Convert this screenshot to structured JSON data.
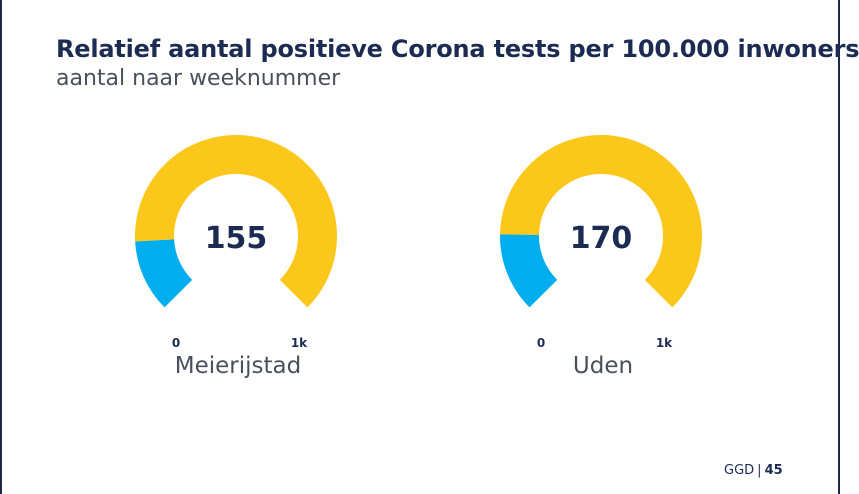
{
  "header": {
    "title": "Relatief aantal positieve Corona tests per 100.000 inwoners",
    "subtitle": "aantal naar weeknummer"
  },
  "colors": {
    "value": "#00adef",
    "remainder": "#fbc71b",
    "text": "#1c2b52",
    "label": "#4a4f5c"
  },
  "chart_data": [
    {
      "type": "gauge",
      "name": "Meierijstad",
      "value": 155,
      "display_value": "155",
      "min": 0,
      "max": 1000,
      "min_label": "0",
      "max_label": "1k"
    },
    {
      "type": "gauge",
      "name": "Uden",
      "value": 170,
      "display_value": "170",
      "min": 0,
      "max": 1000,
      "min_label": "0",
      "max_label": "1k"
    }
  ],
  "footer": {
    "source": "GGD",
    "separator": "|",
    "page": "45"
  }
}
